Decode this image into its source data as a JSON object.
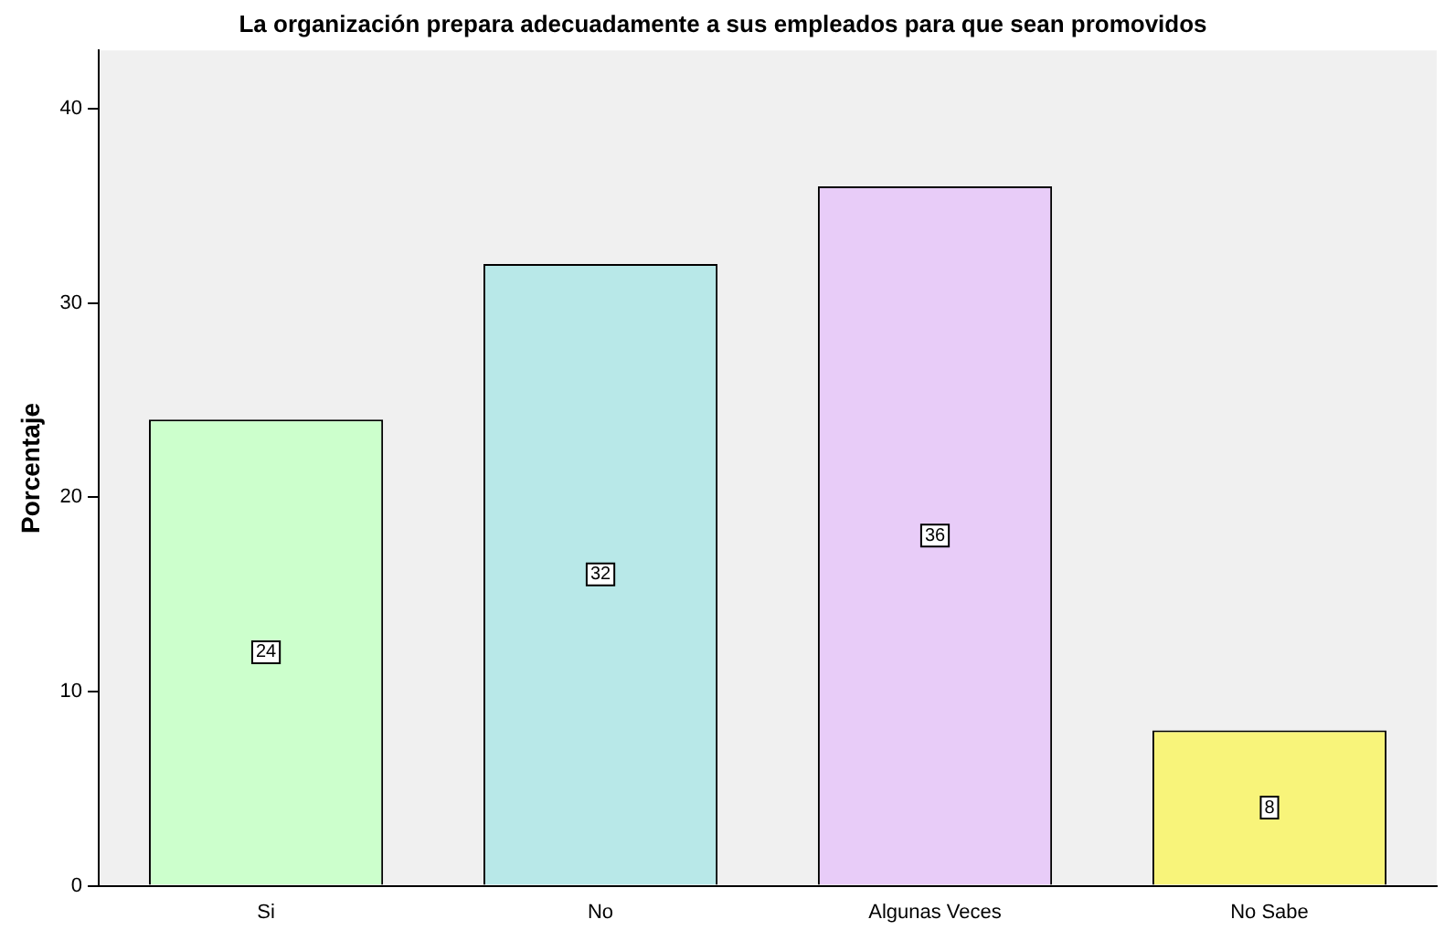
{
  "chart_data": {
    "type": "bar",
    "title": "La organización prepara adecuadamente a sus empleados para que sean promovidos",
    "ylabel": "Porcentaje",
    "categories": [
      "Si",
      "No",
      "Algunas Veces",
      "No Sabe"
    ],
    "values": [
      24,
      32,
      36,
      8
    ],
    "colors": [
      "#ccffcc",
      "#b8e8e8",
      "#e8ccf8",
      "#f8f47a"
    ],
    "ylim": [
      0,
      43
    ],
    "yticks": [
      0,
      10,
      20,
      30,
      40
    ],
    "grid": false,
    "legend": false,
    "data_labels": true
  }
}
